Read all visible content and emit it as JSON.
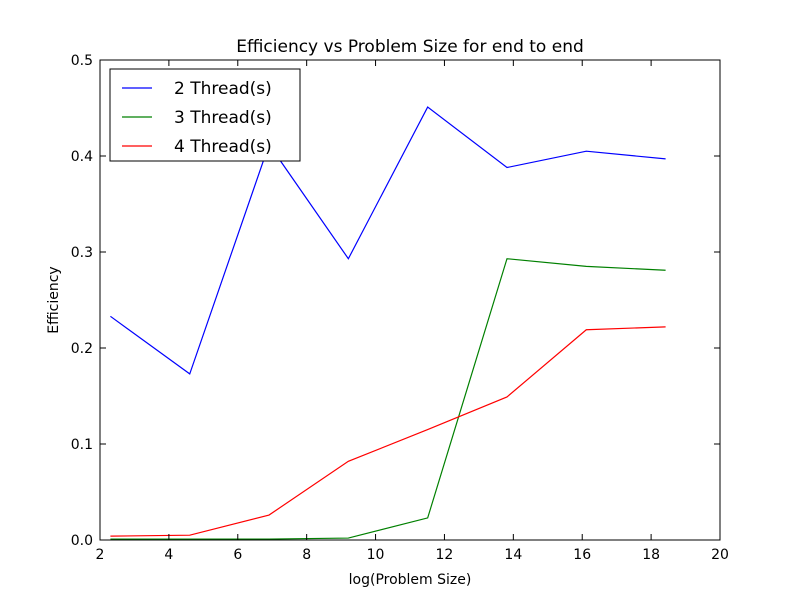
{
  "chart_data": {
    "type": "line",
    "title": "Efficiency vs Problem Size for end to end",
    "xlabel": "log(Problem Size)",
    "ylabel": "Efficiency",
    "xlim": [
      2,
      20
    ],
    "ylim": [
      0.0,
      0.5
    ],
    "xticks": [
      "2",
      "4",
      "6",
      "8",
      "10",
      "12",
      "14",
      "16",
      "18",
      "20"
    ],
    "yticks": [
      "0.0",
      "0.1",
      "0.2",
      "0.3",
      "0.4",
      "0.5"
    ],
    "grid": false,
    "legend_position": "top-left",
    "x": [
      2.3026,
      4.6052,
      6.9078,
      9.2103,
      11.5129,
      13.8155,
      16.1181,
      18.4207
    ],
    "series": [
      {
        "name": "2 Thread(s)",
        "color": "#0000ff",
        "values": [
          0.233,
          0.173,
          0.412,
          0.293,
          0.451,
          0.388,
          0.405,
          0.397
        ]
      },
      {
        "name": "3 Thread(s)",
        "color": "#008000",
        "values": [
          0.001,
          0.001,
          0.001,
          0.002,
          0.023,
          0.293,
          0.285,
          0.281
        ]
      },
      {
        "name": "4 Thread(s)",
        "color": "#ff0000",
        "values": [
          0.004,
          0.005,
          0.026,
          0.082,
          0.115,
          0.149,
          0.219,
          0.222
        ]
      }
    ]
  }
}
